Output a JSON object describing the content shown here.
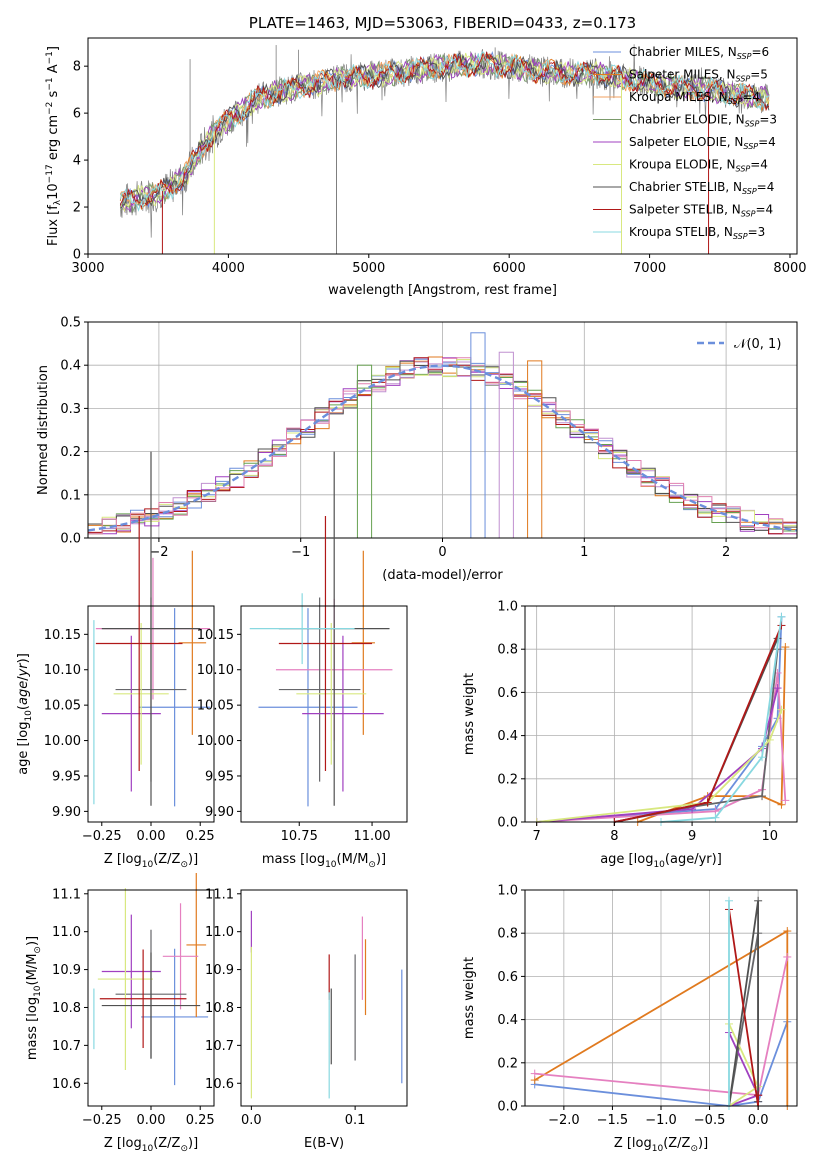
{
  "colors": {
    "series": [
      "#6b8fdc",
      "#e07a1f",
      "#f0a060",
      "#7a9a6a",
      "#a040c0",
      "#d8e880",
      "#505050",
      "#b01818",
      "#88d8e0"
    ],
    "ssp": [
      "#6b8fdc",
      "#e07a1f",
      "#e580c0",
      "#66666a",
      "#a040c0",
      "#d8e880",
      "#505050",
      "#b01818",
      "#88d8e0"
    ],
    "hist": [
      "#6b8fdc",
      "#e07a1f",
      "#66a050",
      "#c090d0",
      "#a040c0",
      "#d8e880",
      "#505050",
      "#b01818",
      "#e080b0"
    ],
    "normal": "#6b8fdc",
    "spectrum_grey": "#7f7f7f",
    "grid": "#b0b0b0"
  },
  "chart_data": [
    {
      "id": "spectrum",
      "type": "line",
      "title": "PLATE=1463, MJD=53063, FIBERID=0433, z=0.173",
      "xlabel": "wavelength [Angstrom, rest frame]",
      "ylabel": "Flux [f_λ10^-17 erg cm^-2 s^-1 A^-1]",
      "xlim": [
        3000,
        8050
      ],
      "ylim": [
        0,
        9.2
      ],
      "xticks": [
        "3000",
        "4000",
        "5000",
        "6000",
        "7000",
        "8000"
      ],
      "yticks": [
        "0",
        "2",
        "4",
        "6",
        "8"
      ],
      "grid": false,
      "legend_position": "top-right",
      "legend": [
        {
          "pre": "Chabrier MILES, N",
          "sub": "SSP",
          "post": "=6"
        },
        {
          "pre": "Salpeter MILES, N",
          "sub": "SSP",
          "post": "=5"
        },
        {
          "pre": "Kroupa MILES, N",
          "sub": "SSP",
          "post": "=4"
        },
        {
          "pre": "Chabrier ELODIE, N",
          "sub": "SSP",
          "post": "=3"
        },
        {
          "pre": "Salpeter ELODIE, N",
          "sub": "SSP",
          "post": "=4"
        },
        {
          "pre": "Kroupa ELODIE, N",
          "sub": "SSP",
          "post": "=4"
        },
        {
          "pre": "Chabrier STELIB, N",
          "sub": "SSP",
          "post": "=4"
        },
        {
          "pre": "Salpeter STELIB, N",
          "sub": "SSP",
          "post": "=4"
        },
        {
          "pre": "Kroupa STELIB, N",
          "sub": "SSP",
          "post": "=3"
        }
      ],
      "continuum": {
        "x": [
          3230,
          3500,
          3600,
          3700,
          3800,
          3900,
          4000,
          4100,
          4200,
          4400,
          4600,
          4800,
          5000,
          5200,
          5400,
          5600,
          5800,
          6000,
          6200,
          6400,
          6600,
          6800,
          7000,
          7200,
          7400,
          7600,
          7850
        ],
        "y": [
          2.2,
          2.6,
          2.9,
          3.4,
          4.4,
          5.2,
          5.7,
          6.1,
          6.6,
          7.0,
          7.2,
          7.5,
          7.6,
          7.7,
          7.9,
          8.0,
          8.1,
          8.0,
          7.8,
          7.7,
          7.7,
          7.5,
          7.3,
          7.1,
          7.0,
          6.8,
          6.6
        ]
      },
      "spikes": [
        {
          "x": 3530,
          "y": 0.0
        },
        {
          "x": 3900,
          "y": 0.0
        },
        {
          "x": 4770,
          "y": 0.0
        },
        {
          "x": 6800,
          "y": 0.0
        },
        {
          "x": 7420,
          "y": 0.0
        }
      ],
      "emission": [
        {
          "x": 3727,
          "y": 8.3
        },
        {
          "x": 4340,
          "y": 8.9
        },
        {
          "x": 4500,
          "y": 8.7
        },
        {
          "x": 5900,
          "y": 8.8
        }
      ]
    },
    {
      "id": "residual_hist",
      "type": "histogram",
      "xlabel": "(data-model)/error",
      "ylabel": "Normed distribution",
      "xlim": [
        -2.5,
        2.5
      ],
      "ylim": [
        0,
        0.5
      ],
      "xticks": [
        "−2",
        "−1",
        "0",
        "1",
        "2"
      ],
      "yticks": [
        "0.0",
        "0.1",
        "0.2",
        "0.3",
        "0.4",
        "0.5"
      ],
      "grid": true,
      "legend_position": "top-right",
      "normal_label": "𝒩(0, 1)",
      "bin_width": 0.1,
      "highlights": [
        {
          "x": 0.2,
          "y": 0.475
        },
        {
          "x": 0.6,
          "y": 0.41
        },
        {
          "x": -0.6,
          "y": 0.4
        },
        {
          "x": 0.4,
          "y": 0.43
        }
      ]
    },
    {
      "id": "age_vs_Z",
      "type": "errorbar",
      "xlabel_pre": "Z [log",
      "xlabel_mid": "(Z/Z",
      "xlabel_post": ")]",
      "ylabel": "age  [log10(age/yr)]",
      "xlim": [
        -0.32,
        0.32
      ],
      "ylim": [
        9.885,
        10.19
      ],
      "xticks": [
        "−0.25",
        "0.00",
        "0.25"
      ],
      "yticks": [
        "9.90",
        "9.95",
        "10.00",
        "10.05",
        "10.10",
        "10.15"
      ],
      "points": [
        {
          "x": 0.12,
          "xerr": 0.18,
          "y": 10.047,
          "yerr": 0.14
        },
        {
          "x": 0.21,
          "xerr": 0.07,
          "y": 10.138,
          "yerr": 0.13
        },
        {
          "x": 0.01,
          "xerr": 0.29,
          "y": 10.158,
          "yerr": 0.1
        },
        {
          "x": 0.0,
          "xerr": 0.18,
          "y": 10.072,
          "yerr": 0.13
        },
        {
          "x": -0.1,
          "xerr": 0.15,
          "y": 10.038,
          "yerr": 0.11
        },
        {
          "x": -0.05,
          "xerr": 0.14,
          "y": 10.066,
          "yerr": 0.1
        },
        {
          "x": 0.0,
          "xerr": 0.25,
          "y": 10.158,
          "yerr": 0.25
        },
        {
          "x": -0.06,
          "xerr": 0.22,
          "y": 10.137,
          "yerr": 0.18
        },
        {
          "x": -0.29,
          "xerr": 0.0,
          "y": 10.04,
          "yerr": 0.13
        }
      ]
    },
    {
      "id": "age_vs_mass",
      "type": "errorbar",
      "xlabel_pre": "mass [log",
      "xlabel_mid": "(M/M",
      "xlabel_post": ")]",
      "xlim": [
        10.55,
        11.12
      ],
      "ylim": [
        9.885,
        10.19
      ],
      "xticks": [
        "10.75",
        "11.00"
      ],
      "yticks": [
        "9.90",
        "9.95",
        "10.00",
        "10.05",
        "10.10",
        "10.15"
      ],
      "points": [
        {
          "x": 10.78,
          "xerr": 0.17,
          "y": 10.047,
          "yerr": 0.14
        },
        {
          "x": 10.97,
          "xerr": 0.04,
          "y": 10.138,
          "yerr": 0.13
        },
        {
          "x": 10.87,
          "xerr": 0.2,
          "y": 10.1,
          "yerr": 0.1
        },
        {
          "x": 10.82,
          "xerr": 0.14,
          "y": 10.072,
          "yerr": 0.13
        },
        {
          "x": 10.9,
          "xerr": 0.14,
          "y": 10.038,
          "yerr": 0.11
        },
        {
          "x": 10.86,
          "xerr": 0.12,
          "y": 10.066,
          "yerr": 0.1
        },
        {
          "x": 10.87,
          "xerr": 0.19,
          "y": 10.158,
          "yerr": 0.25
        },
        {
          "x": 10.84,
          "xerr": 0.16,
          "y": 10.137,
          "yerr": 0.18
        },
        {
          "x": 10.76,
          "xerr": 0.18,
          "y": 10.158,
          "yerr": 0.05
        }
      ]
    },
    {
      "id": "massweight_vs_age",
      "type": "line",
      "xlabel": "age  [log10(age/yr)]",
      "ylabel": "mass weight",
      "xlim": [
        6.85,
        10.35
      ],
      "ylim": [
        0,
        1.0
      ],
      "xticks": [
        "7",
        "8",
        "9",
        "10"
      ],
      "yticks": [
        "0.0",
        "0.2",
        "0.4",
        "0.6",
        "0.8",
        "1.0"
      ],
      "grid": true,
      "series": [
        {
          "x": [
            7.0,
            9.3,
            9.9,
            10.1,
            10.15
          ],
          "y": [
            0.0,
            0.06,
            0.35,
            0.48,
            0.95
          ]
        },
        {
          "x": [
            8.3,
            9.2,
            9.9,
            10.15,
            10.2
          ],
          "y": [
            0.0,
            0.12,
            0.12,
            0.08,
            0.81
          ]
        },
        {
          "x": [
            7.0,
            9.3,
            9.9,
            10.1,
            10.2
          ],
          "y": [
            0.0,
            0.05,
            0.15,
            0.69,
            0.1
          ]
        },
        {
          "x": [
            8.0,
            9.0,
            9.9,
            10.1
          ],
          "y": [
            0.0,
            0.07,
            0.12,
            0.8
          ]
        },
        {
          "x": [
            7.0,
            9.0,
            9.9,
            10.1
          ],
          "y": [
            0.0,
            0.06,
            0.34,
            0.62
          ]
        },
        {
          "x": [
            7.0,
            9.2,
            10.0,
            10.15
          ],
          "y": [
            0.0,
            0.09,
            0.38,
            0.52
          ]
        },
        {
          "x": [
            8.0,
            9.2,
            10.1
          ],
          "y": [
            0.0,
            0.09,
            0.85
          ]
        },
        {
          "x": [
            8.0,
            9.2,
            10.15
          ],
          "y": [
            0.0,
            0.09,
            0.91
          ]
        },
        {
          "x": [
            8.6,
            9.3,
            9.9,
            10.15
          ],
          "y": [
            0.0,
            0.02,
            0.3,
            0.95
          ]
        }
      ]
    },
    {
      "id": "mass_vs_Z",
      "type": "errorbar",
      "xlabel_pre": "Z [log",
      "xlabel_mid": "(Z/Z",
      "xlabel_post": ")]",
      "ylabel": "mass [log10(M/M☉)]",
      "xlim": [
        -0.32,
        0.32
      ],
      "ylim": [
        10.54,
        11.11
      ],
      "xticks": [
        "−0.25",
        "0.00",
        "0.25"
      ],
      "yticks": [
        "10.6",
        "10.7",
        "10.8",
        "10.9",
        "11.0",
        "11.1"
      ],
      "points": [
        {
          "x": 0.12,
          "xerr": 0.17,
          "y": 10.775,
          "yerr": 0.18
        },
        {
          "x": 0.23,
          "xerr": 0.05,
          "y": 10.965,
          "yerr": 0.19
        },
        {
          "x": 0.15,
          "xerr": 0.09,
          "y": 10.935,
          "yerr": 0.14
        },
        {
          "x": 0.0,
          "xerr": 0.18,
          "y": 10.835,
          "yerr": 0.17
        },
        {
          "x": -0.1,
          "xerr": 0.15,
          "y": 10.895,
          "yerr": 0.15
        },
        {
          "x": -0.13,
          "xerr": 0.14,
          "y": 10.875,
          "yerr": 0.24
        },
        {
          "x": 0.0,
          "xerr": 0.25,
          "y": 10.805,
          "yerr": 0.14
        },
        {
          "x": -0.04,
          "xerr": 0.22,
          "y": 10.823,
          "yerr": 0.13
        },
        {
          "x": -0.29,
          "xerr": 0.0,
          "y": 10.77,
          "yerr": 0.08
        }
      ]
    },
    {
      "id": "mass_vs_ebv",
      "type": "errorbar",
      "xlabel": "E(B-V)",
      "xlim": [
        -0.01,
        0.15
      ],
      "ylim": [
        10.54,
        11.11
      ],
      "xticks": [
        "0.0",
        "0.1"
      ],
      "yticks": [
        "10.6",
        "10.7",
        "10.8",
        "10.9",
        "11.0",
        "11.1"
      ],
      "points": [
        {
          "x": 0.145,
          "xerr": 0.0,
          "y": 10.75,
          "yerr": 0.15
        },
        {
          "x": 0.11,
          "xerr": 0.0,
          "y": 10.88,
          "yerr": 0.1
        },
        {
          "x": 0.107,
          "xerr": 0.0,
          "y": 10.93,
          "yerr": 0.11
        },
        {
          "x": 0.1,
          "xerr": 0.0,
          "y": 10.8,
          "yerr": 0.14
        },
        {
          "x": 0.0,
          "xerr": 0.0,
          "y": 11.0,
          "yerr": 0.055
        },
        {
          "x": 0.0,
          "xerr": 0.0,
          "y": 10.76,
          "yerr": 0.2
        },
        {
          "x": 0.077,
          "xerr": 0.0,
          "y": 10.75,
          "yerr": 0.1
        },
        {
          "x": 0.075,
          "xerr": 0.0,
          "y": 10.88,
          "yerr": 0.06
        },
        {
          "x": 0.075,
          "xerr": 0.0,
          "y": 10.7,
          "yerr": 0.14
        }
      ]
    },
    {
      "id": "massweight_vs_Z",
      "type": "line",
      "xlabel_pre": "Z [log",
      "xlabel_mid": "(Z/Z",
      "xlabel_post": ")]",
      "ylabel": "mass weight",
      "xlim": [
        -2.4,
        0.4
      ],
      "ylim": [
        0,
        1.0
      ],
      "xticks": [
        "−2.0",
        "−1.5",
        "−1.0",
        "−0.5",
        "0.0"
      ],
      "yticks": [
        "0.0",
        "0.2",
        "0.4",
        "0.6",
        "0.8",
        "1.0"
      ],
      "grid": true,
      "series": [
        {
          "x": [
            -2.3,
            -0.3,
            0.0,
            0.3
          ],
          "y": [
            0.1,
            0.0,
            0.02,
            0.39
          ]
        },
        {
          "x": [
            -2.3,
            0.3,
            0.3
          ],
          "y": [
            0.12,
            0.81,
            0.0
          ]
        },
        {
          "x": [
            -2.3,
            0.0,
            0.3
          ],
          "y": [
            0.15,
            0.05,
            0.69
          ]
        },
        {
          "x": [
            -0.3,
            0.0,
            0.0
          ],
          "y": [
            0.0,
            0.8,
            0.05
          ]
        },
        {
          "x": [
            -0.3,
            0.0,
            -0.3
          ],
          "y": [
            0.34,
            0.05,
            0.0
          ]
        },
        {
          "x": [
            -0.3,
            0.0,
            -0.3
          ],
          "y": [
            0.38,
            0.09,
            0.0
          ]
        },
        {
          "x": [
            -0.3,
            0.0,
            0.0
          ],
          "y": [
            0.0,
            0.95,
            0.02
          ]
        },
        {
          "x": [
            -0.3,
            0.0,
            0.0
          ],
          "y": [
            0.91,
            0.0,
            0.05
          ]
        },
        {
          "x": [
            -0.3,
            -0.3
          ],
          "y": [
            0.95,
            0.0
          ]
        }
      ]
    }
  ]
}
